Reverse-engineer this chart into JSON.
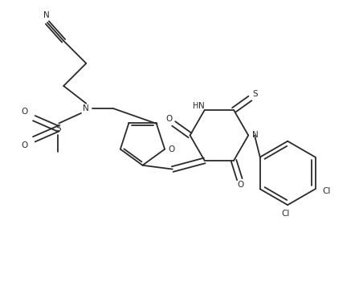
{
  "bg_color": "#ffffff",
  "line_color": "#2a2a2a",
  "figsize": [
    4.47,
    3.66
  ],
  "dpi": 100,
  "lw": 1.3,
  "fs": 7.5,
  "xlim": [
    0,
    9
  ],
  "ylim": [
    0,
    7.5
  ]
}
